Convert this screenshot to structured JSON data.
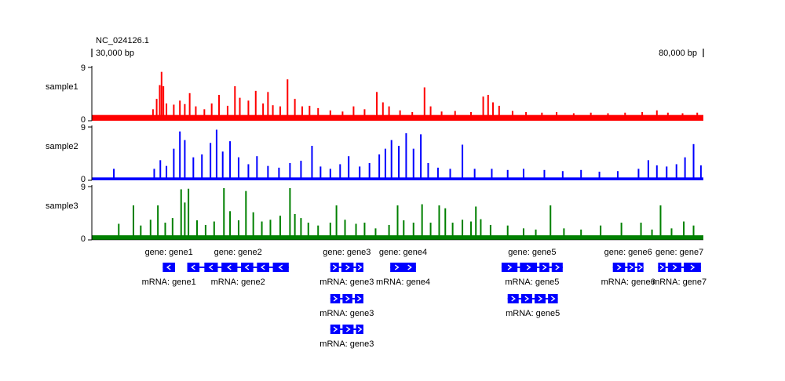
{
  "chart_data": {
    "type": "genome-track",
    "title": "NC_024126.1",
    "range": {
      "start_bp": 30000,
      "end_bp": 80000,
      "start_label": "30,000 bp",
      "end_label": "80,000 bp"
    },
    "y_range": [
      0,
      9
    ],
    "y_tick_labels": [
      "0",
      "9"
    ],
    "tracks": [
      {
        "name": "sample1",
        "color": "#ff0000",
        "baseline": 1.0,
        "peaks": [
          {
            "pos": 31150,
            "h": 0.5
          },
          {
            "pos": 32200,
            "h": 0.5
          },
          {
            "pos": 32800,
            "h": 0.5
          },
          {
            "pos": 35000,
            "h": 2.0
          },
          {
            "pos": 35300,
            "h": 3.8
          },
          {
            "pos": 35550,
            "h": 6.2
          },
          {
            "pos": 35700,
            "h": 8.5
          },
          {
            "pos": 35850,
            "h": 6.0
          },
          {
            "pos": 36100,
            "h": 3.0
          },
          {
            "pos": 36700,
            "h": 2.8
          },
          {
            "pos": 37200,
            "h": 3.5
          },
          {
            "pos": 37600,
            "h": 2.9
          },
          {
            "pos": 38000,
            "h": 4.8
          },
          {
            "pos": 38500,
            "h": 2.5
          },
          {
            "pos": 39200,
            "h": 2.0
          },
          {
            "pos": 39800,
            "h": 3.0
          },
          {
            "pos": 40400,
            "h": 4.5
          },
          {
            "pos": 41100,
            "h": 2.6
          },
          {
            "pos": 41700,
            "h": 6.0
          },
          {
            "pos": 42100,
            "h": 4.0
          },
          {
            "pos": 42800,
            "h": 3.5
          },
          {
            "pos": 43400,
            "h": 5.2
          },
          {
            "pos": 44000,
            "h": 3.0
          },
          {
            "pos": 44400,
            "h": 5.0
          },
          {
            "pos": 44800,
            "h": 2.7
          },
          {
            "pos": 45400,
            "h": 2.5
          },
          {
            "pos": 46000,
            "h": 7.2
          },
          {
            "pos": 46600,
            "h": 3.8
          },
          {
            "pos": 47200,
            "h": 2.5
          },
          {
            "pos": 47800,
            "h": 2.6
          },
          {
            "pos": 48500,
            "h": 2.2
          },
          {
            "pos": 49500,
            "h": 1.8
          },
          {
            "pos": 50500,
            "h": 1.6
          },
          {
            "pos": 51400,
            "h": 2.5
          },
          {
            "pos": 52300,
            "h": 2.0
          },
          {
            "pos": 53300,
            "h": 5.0
          },
          {
            "pos": 53800,
            "h": 3.2
          },
          {
            "pos": 54300,
            "h": 2.5
          },
          {
            "pos": 55200,
            "h": 1.8
          },
          {
            "pos": 56200,
            "h": 1.5
          },
          {
            "pos": 57200,
            "h": 5.8
          },
          {
            "pos": 57700,
            "h": 2.5
          },
          {
            "pos": 58600,
            "h": 1.6
          },
          {
            "pos": 59700,
            "h": 1.7
          },
          {
            "pos": 61000,
            "h": 1.5
          },
          {
            "pos": 62000,
            "h": 4.2
          },
          {
            "pos": 62400,
            "h": 4.5
          },
          {
            "pos": 62800,
            "h": 3.2
          },
          {
            "pos": 63300,
            "h": 2.6
          },
          {
            "pos": 64400,
            "h": 1.7
          },
          {
            "pos": 65500,
            "h": 1.5
          },
          {
            "pos": 66800,
            "h": 1.4
          },
          {
            "pos": 68000,
            "h": 1.5
          },
          {
            "pos": 69400,
            "h": 1.3
          },
          {
            "pos": 70800,
            "h": 1.4
          },
          {
            "pos": 72200,
            "h": 1.3
          },
          {
            "pos": 73600,
            "h": 1.4
          },
          {
            "pos": 75000,
            "h": 1.5
          },
          {
            "pos": 76200,
            "h": 1.8
          },
          {
            "pos": 77100,
            "h": 1.4
          },
          {
            "pos": 78300,
            "h": 1.3
          },
          {
            "pos": 79500,
            "h": 1.4
          }
        ]
      },
      {
        "name": "sample2",
        "color": "#0000ff",
        "baseline": 0.5,
        "peaks": [
          {
            "pos": 31800,
            "h": 2.0
          },
          {
            "pos": 35100,
            "h": 2.0
          },
          {
            "pos": 35600,
            "h": 3.5
          },
          {
            "pos": 36100,
            "h": 2.5
          },
          {
            "pos": 36700,
            "h": 5.5
          },
          {
            "pos": 37200,
            "h": 8.5
          },
          {
            "pos": 37600,
            "h": 7.0
          },
          {
            "pos": 38300,
            "h": 4.0
          },
          {
            "pos": 39000,
            "h": 4.5
          },
          {
            "pos": 39700,
            "h": 6.5
          },
          {
            "pos": 40200,
            "h": 8.8
          },
          {
            "pos": 40700,
            "h": 5.0
          },
          {
            "pos": 41300,
            "h": 6.8
          },
          {
            "pos": 42000,
            "h": 4.0
          },
          {
            "pos": 42800,
            "h": 2.8
          },
          {
            "pos": 43500,
            "h": 4.2
          },
          {
            "pos": 44400,
            "h": 2.5
          },
          {
            "pos": 45300,
            "h": 2.2
          },
          {
            "pos": 46200,
            "h": 3.0
          },
          {
            "pos": 47100,
            "h": 3.4
          },
          {
            "pos": 48000,
            "h": 6.0
          },
          {
            "pos": 48700,
            "h": 2.4
          },
          {
            "pos": 49500,
            "h": 2.0
          },
          {
            "pos": 50300,
            "h": 2.8
          },
          {
            "pos": 51000,
            "h": 4.2
          },
          {
            "pos": 51900,
            "h": 2.4
          },
          {
            "pos": 52700,
            "h": 3.0
          },
          {
            "pos": 53500,
            "h": 4.5
          },
          {
            "pos": 54000,
            "h": 5.5
          },
          {
            "pos": 54500,
            "h": 7.0
          },
          {
            "pos": 55100,
            "h": 6.0
          },
          {
            "pos": 55700,
            "h": 8.2
          },
          {
            "pos": 56300,
            "h": 5.5
          },
          {
            "pos": 56900,
            "h": 8.0
          },
          {
            "pos": 57500,
            "h": 3.0
          },
          {
            "pos": 58300,
            "h": 2.2
          },
          {
            "pos": 59300,
            "h": 2.0
          },
          {
            "pos": 60300,
            "h": 6.2
          },
          {
            "pos": 61300,
            "h": 2.0
          },
          {
            "pos": 62700,
            "h": 2.0
          },
          {
            "pos": 64000,
            "h": 1.8
          },
          {
            "pos": 65300,
            "h": 2.0
          },
          {
            "pos": 67000,
            "h": 1.8
          },
          {
            "pos": 68500,
            "h": 1.6
          },
          {
            "pos": 70000,
            "h": 1.8
          },
          {
            "pos": 71500,
            "h": 1.5
          },
          {
            "pos": 73000,
            "h": 1.6
          },
          {
            "pos": 74700,
            "h": 2.0
          },
          {
            "pos": 75500,
            "h": 3.5
          },
          {
            "pos": 76200,
            "h": 2.6
          },
          {
            "pos": 77000,
            "h": 2.4
          },
          {
            "pos": 77800,
            "h": 2.8
          },
          {
            "pos": 78500,
            "h": 4.0
          },
          {
            "pos": 79200,
            "h": 6.3
          },
          {
            "pos": 79800,
            "h": 2.6
          }
        ]
      },
      {
        "name": "sample3",
        "color": "#008000",
        "baseline": 0.8,
        "peaks": [
          {
            "pos": 32200,
            "h": 2.8
          },
          {
            "pos": 33400,
            "h": 6.0
          },
          {
            "pos": 34000,
            "h": 2.5
          },
          {
            "pos": 34800,
            "h": 3.5
          },
          {
            "pos": 35400,
            "h": 6.0
          },
          {
            "pos": 36000,
            "h": 3.0
          },
          {
            "pos": 36600,
            "h": 3.8
          },
          {
            "pos": 37300,
            "h": 8.8
          },
          {
            "pos": 37600,
            "h": 6.5
          },
          {
            "pos": 37900,
            "h": 8.9
          },
          {
            "pos": 38600,
            "h": 3.4
          },
          {
            "pos": 39300,
            "h": 2.6
          },
          {
            "pos": 40000,
            "h": 3.2
          },
          {
            "pos": 40800,
            "h": 9.0
          },
          {
            "pos": 41300,
            "h": 5.0
          },
          {
            "pos": 42000,
            "h": 3.4
          },
          {
            "pos": 42600,
            "h": 8.5
          },
          {
            "pos": 43200,
            "h": 4.8
          },
          {
            "pos": 43900,
            "h": 3.2
          },
          {
            "pos": 44600,
            "h": 3.5
          },
          {
            "pos": 45400,
            "h": 4.2
          },
          {
            "pos": 46200,
            "h": 9.0
          },
          {
            "pos": 46600,
            "h": 4.5
          },
          {
            "pos": 47100,
            "h": 3.8
          },
          {
            "pos": 47700,
            "h": 3.0
          },
          {
            "pos": 48500,
            "h": 2.5
          },
          {
            "pos": 49500,
            "h": 3.0
          },
          {
            "pos": 50000,
            "h": 6.0
          },
          {
            "pos": 50700,
            "h": 3.5
          },
          {
            "pos": 51600,
            "h": 2.8
          },
          {
            "pos": 52300,
            "h": 3.0
          },
          {
            "pos": 53200,
            "h": 2.0
          },
          {
            "pos": 54300,
            "h": 2.6
          },
          {
            "pos": 55000,
            "h": 6.0
          },
          {
            "pos": 55500,
            "h": 3.4
          },
          {
            "pos": 56300,
            "h": 3.0
          },
          {
            "pos": 57000,
            "h": 6.2
          },
          {
            "pos": 57700,
            "h": 3.0
          },
          {
            "pos": 58400,
            "h": 6.0
          },
          {
            "pos": 58900,
            "h": 5.5
          },
          {
            "pos": 59500,
            "h": 3.0
          },
          {
            "pos": 60300,
            "h": 3.5
          },
          {
            "pos": 61000,
            "h": 3.2
          },
          {
            "pos": 61400,
            "h": 5.8
          },
          {
            "pos": 61800,
            "h": 3.6
          },
          {
            "pos": 62600,
            "h": 2.6
          },
          {
            "pos": 64000,
            "h": 2.5
          },
          {
            "pos": 65300,
            "h": 2.0
          },
          {
            "pos": 66300,
            "h": 1.8
          },
          {
            "pos": 67500,
            "h": 6.0
          },
          {
            "pos": 68600,
            "h": 2.0
          },
          {
            "pos": 70000,
            "h": 1.8
          },
          {
            "pos": 71600,
            "h": 2.5
          },
          {
            "pos": 73300,
            "h": 3.0
          },
          {
            "pos": 74900,
            "h": 3.0
          },
          {
            "pos": 75800,
            "h": 1.8
          },
          {
            "pos": 76500,
            "h": 6.0
          },
          {
            "pos": 77400,
            "h": 2.0
          },
          {
            "pos": 78400,
            "h": 3.2
          },
          {
            "pos": 79200,
            "h": 2.5
          }
        ]
      }
    ],
    "features": [
      {
        "name": "gene: gene1",
        "start": 35800,
        "end": 36800,
        "strand": "-",
        "row": 0,
        "parts": [
          [
            35800,
            36800
          ]
        ],
        "label": "mRNA: gene1"
      },
      {
        "name": "gene: gene2",
        "start": 37800,
        "end": 46100,
        "strand": "-",
        "row": 0,
        "parts": [
          [
            37800,
            38800
          ],
          [
            39200,
            40300
          ],
          [
            40600,
            41900
          ],
          [
            42200,
            43200
          ],
          [
            43500,
            44500
          ],
          [
            44800,
            46100
          ]
        ],
        "label": "mRNA: gene2"
      },
      {
        "name": "gene: gene3",
        "start": 49500,
        "end": 52200,
        "strand": "+",
        "row": 0,
        "parts": [
          [
            49500,
            50200
          ],
          [
            50400,
            51400
          ],
          [
            51600,
            52200
          ]
        ],
        "label": "mRNA: gene3"
      },
      {
        "name": "",
        "start": 49500,
        "end": 52200,
        "strand": "+",
        "row": 1,
        "parts": [
          [
            49500,
            50300
          ],
          [
            50500,
            51300
          ],
          [
            51500,
            52200
          ]
        ],
        "label": "mRNA: gene3"
      },
      {
        "name": "",
        "start": 49500,
        "end": 52200,
        "strand": "+",
        "row": 2,
        "parts": [
          [
            49500,
            50300
          ],
          [
            50500,
            51400
          ],
          [
            51600,
            52200
          ]
        ],
        "label": "mRNA: gene3"
      },
      {
        "name": "gene: gene4",
        "start": 54400,
        "end": 56500,
        "strand": "+",
        "row": 0,
        "parts": [
          [
            54400,
            56500
          ]
        ],
        "label": "mRNA: gene4"
      },
      {
        "name": "gene: gene5",
        "start": 63500,
        "end": 68500,
        "strand": "+",
        "row": 0,
        "parts": [
          [
            63500,
            64800
          ],
          [
            65000,
            66400
          ],
          [
            66600,
            67400
          ],
          [
            67600,
            68500
          ]
        ],
        "label": "mRNA: gene5"
      },
      {
        "name": "",
        "start": 64000,
        "end": 68100,
        "strand": "+",
        "row": 1,
        "parts": [
          [
            64000,
            64900
          ],
          [
            65100,
            66000
          ],
          [
            66200,
            67100
          ],
          [
            67300,
            68100
          ]
        ],
        "label": "mRNA: gene5"
      },
      {
        "name": "gene: gene6",
        "start": 72600,
        "end": 75100,
        "strand": "+",
        "row": 0,
        "parts": [
          [
            72600,
            73600
          ],
          [
            73800,
            74400
          ],
          [
            74600,
            75100
          ]
        ],
        "label": "mRNA: gene6"
      },
      {
        "name": "gene: gene7",
        "start": 76300,
        "end": 79800,
        "strand": "+",
        "row": 0,
        "parts": [
          [
            76300,
            76900
          ],
          [
            77100,
            78200
          ],
          [
            78400,
            79800
          ]
        ],
        "label": "mRNA: gene7"
      }
    ]
  }
}
